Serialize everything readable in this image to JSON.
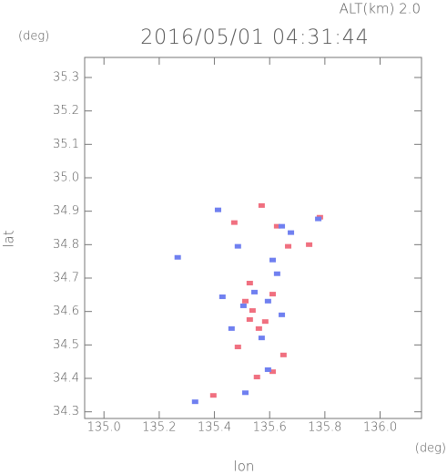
{
  "chart_data": {
    "type": "scatter",
    "title": "2016/05/01 04:31:44",
    "subtitle": "ALT(km) 2.0",
    "y_unit": "(deg)",
    "x_unit": "(deg)",
    "xlabel": "lon",
    "ylabel": "lat",
    "xlim": [
      134.93,
      136.15
    ],
    "ylim": [
      34.28,
      35.36
    ],
    "xticks": [
      {
        "value": 135,
        "label": "135.0"
      },
      135.2,
      135.4,
      135.6,
      135.8,
      {
        "value": 136,
        "label": "136.0"
      }
    ],
    "yticks": [
      34.3,
      34.4,
      34.5,
      34.6,
      34.7,
      34.8,
      34.9,
      {
        "value": 35,
        "label": "35.0"
      },
      35.1,
      35.2,
      35.3
    ],
    "series": [
      {
        "color": "#f07080",
        "x": [
          135.584,
          135.538,
          135.528,
          135.561,
          135.611,
          135.485,
          135.396,
          135.611,
          135.554,
          135.65,
          135.571,
          135.472,
          135.743,
          135.627,
          135.782,
          135.528,
          135.512,
          135.667
        ],
        "y": [
          34.57,
          34.603,
          34.685,
          34.549,
          34.652,
          34.494,
          34.349,
          34.42,
          34.404,
          34.47,
          34.917,
          34.866,
          34.8,
          34.855,
          34.882,
          34.576,
          34.631,
          34.795
        ]
      },
      {
        "color": "#7080f0",
        "x": [
          135.33,
          135.413,
          135.644,
          135.776,
          135.267,
          135.627,
          135.594,
          135.505,
          135.462,
          135.571,
          135.594,
          135.512,
          135.677,
          135.485,
          135.611,
          135.545,
          135.644,
          135.429
        ],
        "y": [
          34.33,
          34.904,
          34.855,
          34.877,
          34.762,
          34.713,
          34.631,
          34.617,
          34.549,
          34.521,
          34.426,
          34.357,
          34.836,
          34.795,
          34.754,
          34.658,
          34.59,
          34.644
        ]
      }
    ]
  }
}
